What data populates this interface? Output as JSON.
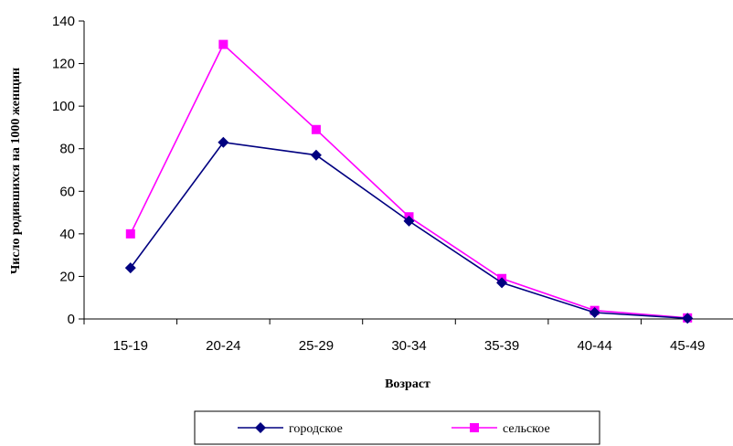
{
  "chart_data": {
    "type": "line",
    "title": "",
    "xlabel": "Возраст",
    "ylabel": "Число родившихся на 1000 женщин",
    "categories": [
      "15-19",
      "20-24",
      "25-29",
      "30-34",
      "35-39",
      "40-44",
      "45-49"
    ],
    "ylim": [
      0,
      140
    ],
    "yticks": [
      0,
      20,
      40,
      60,
      80,
      100,
      120,
      140
    ],
    "grid": false,
    "legend_position": "bottom",
    "series": [
      {
        "name": "городское",
        "values": [
          24,
          83,
          77,
          46,
          17,
          3,
          0.3
        ],
        "color": "#000080",
        "marker": "diamond"
      },
      {
        "name": "сельское",
        "values": [
          40,
          129,
          89,
          48,
          19,
          4,
          0.5
        ],
        "color": "#FF00FF",
        "marker": "square"
      }
    ]
  }
}
